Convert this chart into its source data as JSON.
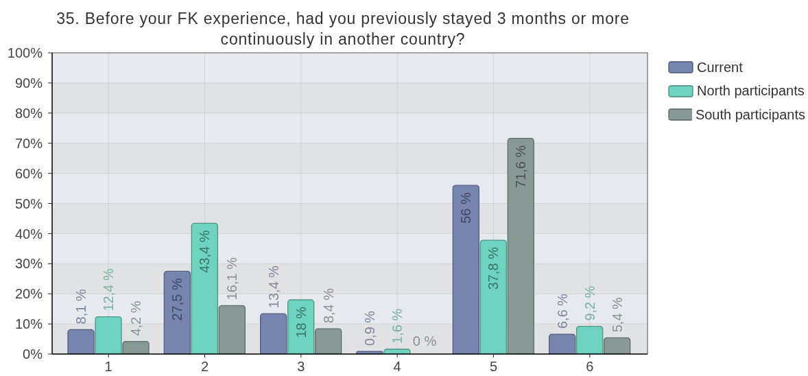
{
  "chart_data": {
    "type": "bar",
    "title": "35. Before your FK experience, had you previously stayed 3 months or more continuously in another country?",
    "categories": [
      "1",
      "2",
      "3",
      "4",
      "5",
      "6"
    ],
    "series": [
      {
        "name": "Current",
        "color": "#7585b0",
        "values": [
          8.1,
          27.5,
          13.4,
          0.9,
          56,
          6.6
        ],
        "value_labels": [
          "8,1 %",
          "27,5 %",
          "13,4 %",
          "0,9 %",
          "56 %",
          "6,6 %"
        ]
      },
      {
        "name": "North participants",
        "color": "#6dd3bf",
        "values": [
          12.4,
          43.4,
          18,
          1.6,
          37.8,
          9.2
        ],
        "value_labels": [
          "12,4 %",
          "43,4 %",
          "18 %",
          "1,6 %",
          "37,8 %",
          "9,2 %"
        ]
      },
      {
        "name": "South participants",
        "color": "#879994",
        "values": [
          4.2,
          16.1,
          8.4,
          0,
          71.6,
          5.4
        ],
        "value_labels": [
          "4,2 %",
          "16,1 %",
          "8,4 %",
          "0 %",
          "71,6 %",
          "5,4 %"
        ]
      }
    ],
    "ylim": [
      0,
      100
    ],
    "yticks": [
      {
        "value": 0,
        "label": "0%"
      },
      {
        "value": 10,
        "label": "10%"
      },
      {
        "value": 20,
        "label": "20%"
      },
      {
        "value": 30,
        "label": "30%"
      },
      {
        "value": 40,
        "label": "40%"
      },
      {
        "value": 50,
        "label": "50%"
      },
      {
        "value": 60,
        "label": "60%"
      },
      {
        "value": 70,
        "label": "70%"
      },
      {
        "value": 80,
        "label": "80%"
      },
      {
        "value": 90,
        "label": "90%"
      },
      {
        "value": 100,
        "label": "100%"
      }
    ],
    "grid": true,
    "legend": "top right"
  }
}
